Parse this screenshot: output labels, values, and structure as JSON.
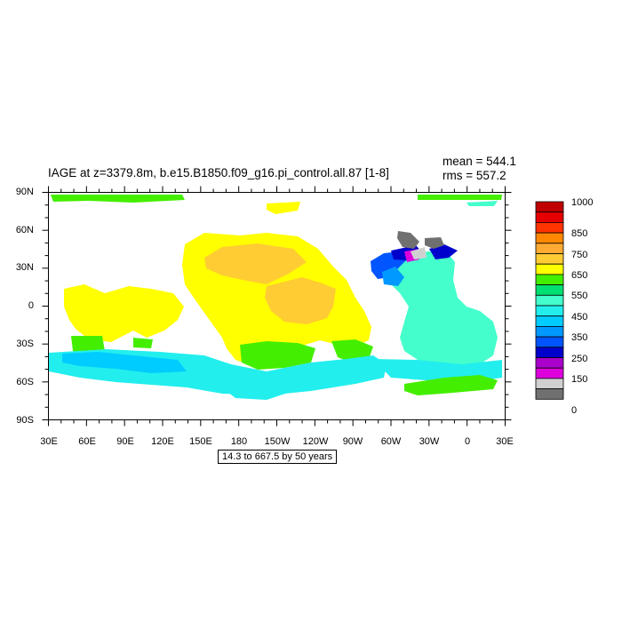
{
  "title": "IAGE at z=3379.8m, b.e15.B1850.f09_g16.pi_control.all.87 [1-8]",
  "stats": {
    "mean": "mean = 544.1",
    "rms": "rms = 557.2"
  },
  "info_box": "14.3 to 667.5 by 50 years",
  "map": {
    "lat_ticks": [
      "90N",
      "60N",
      "30N",
      "0",
      "30S",
      "60S",
      "90S"
    ],
    "lon_ticks": [
      "30E",
      "60E",
      "90E",
      "120E",
      "150E",
      "180",
      "150W",
      "120W",
      "90W",
      "60W",
      "30W",
      "0",
      "30E"
    ],
    "field": "IAGE",
    "units": "years"
  },
  "colorbar": {
    "labels": [
      "1000",
      "850",
      "750",
      "650",
      "550",
      "450",
      "350",
      "250",
      "150",
      "0"
    ],
    "colors": [
      "#c00000",
      "#e60000",
      "#ff3300",
      "#ff8800",
      "#ffaa33",
      "#ffcc33",
      "#ffff00",
      "#44ee00",
      "#00e070",
      "#44ffcc",
      "#22eeee",
      "#00ccff",
      "#0099ff",
      "#0055ff",
      "#0000cc",
      "#aa00cc",
      "#dd00dd",
      "#d0d0d0",
      "#707070"
    ]
  }
}
